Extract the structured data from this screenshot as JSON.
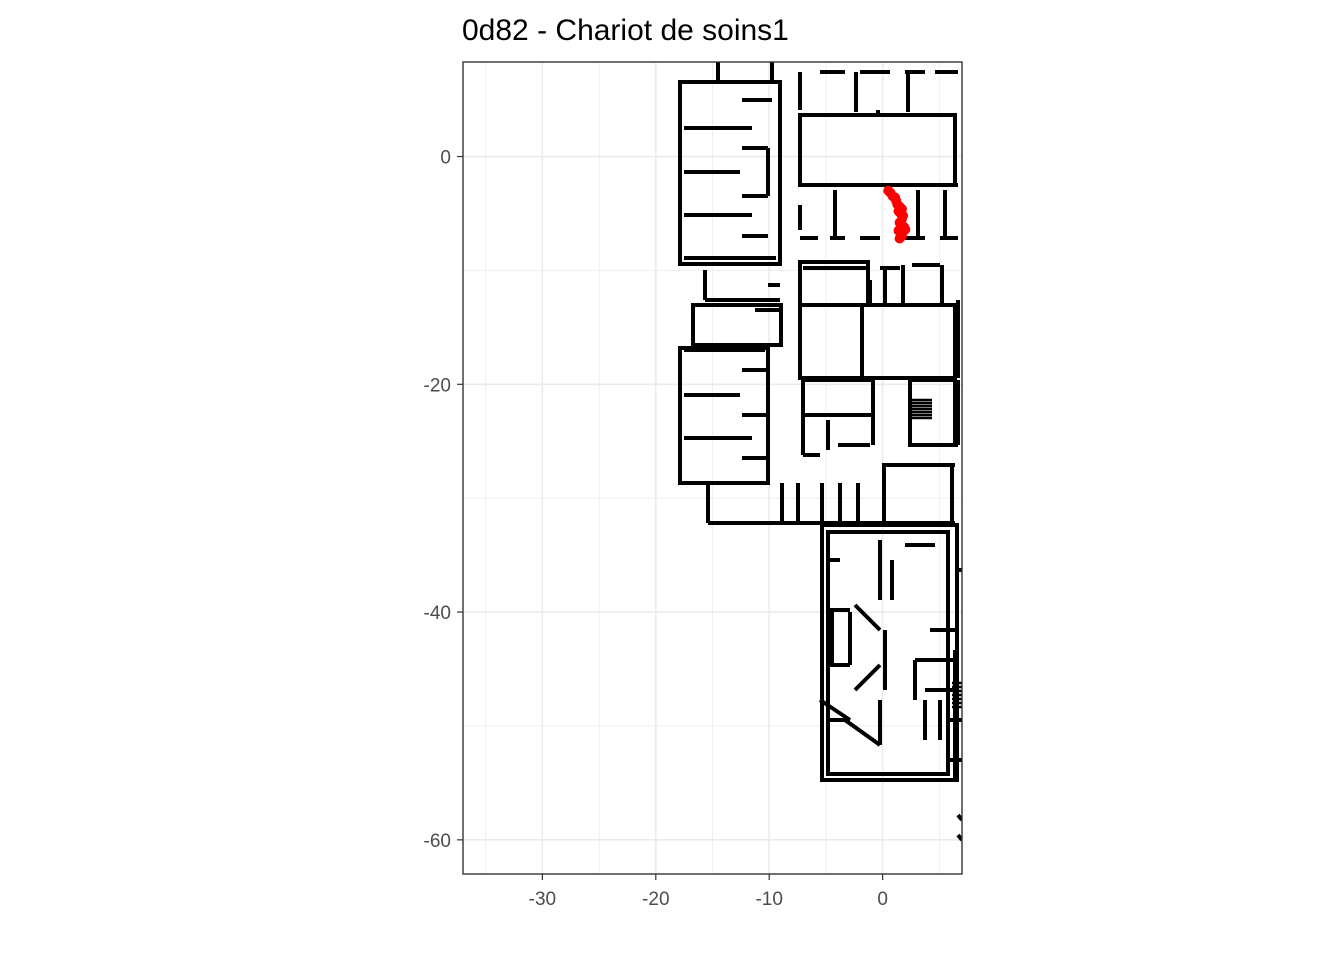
{
  "title": "0d82 - Chariot de soins1",
  "chart_data": {
    "type": "scatter",
    "title": "0d82 - Chariot de soins1",
    "xlabel": "",
    "ylabel": "",
    "xlim": [
      -37,
      7
    ],
    "ylim": [
      -63,
      8.3
    ],
    "x_major_ticks": [
      -30,
      -20,
      -10,
      0
    ],
    "x_tick_labels": [
      "-30",
      "-20",
      "-10",
      "0"
    ],
    "x_minor_ticks": [
      -35,
      -25,
      -15,
      -5,
      5
    ],
    "y_major_ticks": [
      0,
      -20,
      -40,
      -60
    ],
    "y_tick_labels": [
      "0",
      "-20",
      "-40",
      "-60"
    ],
    "y_minor_ticks": [
      -10,
      -30,
      -50
    ],
    "grid": true,
    "theme": "bw",
    "colors": {
      "track": "#ff0000",
      "walls": "#000000",
      "grid": "#ebebeb"
    },
    "series": [
      {
        "x": [
          0.5,
          0.7,
          0.9,
          1.1,
          1.2,
          1.3,
          1.5,
          1.4,
          1.6,
          1.8,
          1.7,
          1.5,
          1.6,
          1.9,
          2.0,
          1.8,
          1.6,
          1.7,
          1.5,
          1.4,
          1.6,
          1.7
        ],
        "y": [
          -3.0,
          -3.2,
          -3.5,
          -3.6,
          -3.9,
          -4.2,
          -4.4,
          -4.8,
          -5.0,
          -5.2,
          -5.5,
          -5.8,
          -6.0,
          -6.2,
          -6.4,
          -6.6,
          -6.8,
          -7.0,
          -7.2,
          -6.5,
          -5.9,
          -4.6
        ]
      }
    ]
  }
}
